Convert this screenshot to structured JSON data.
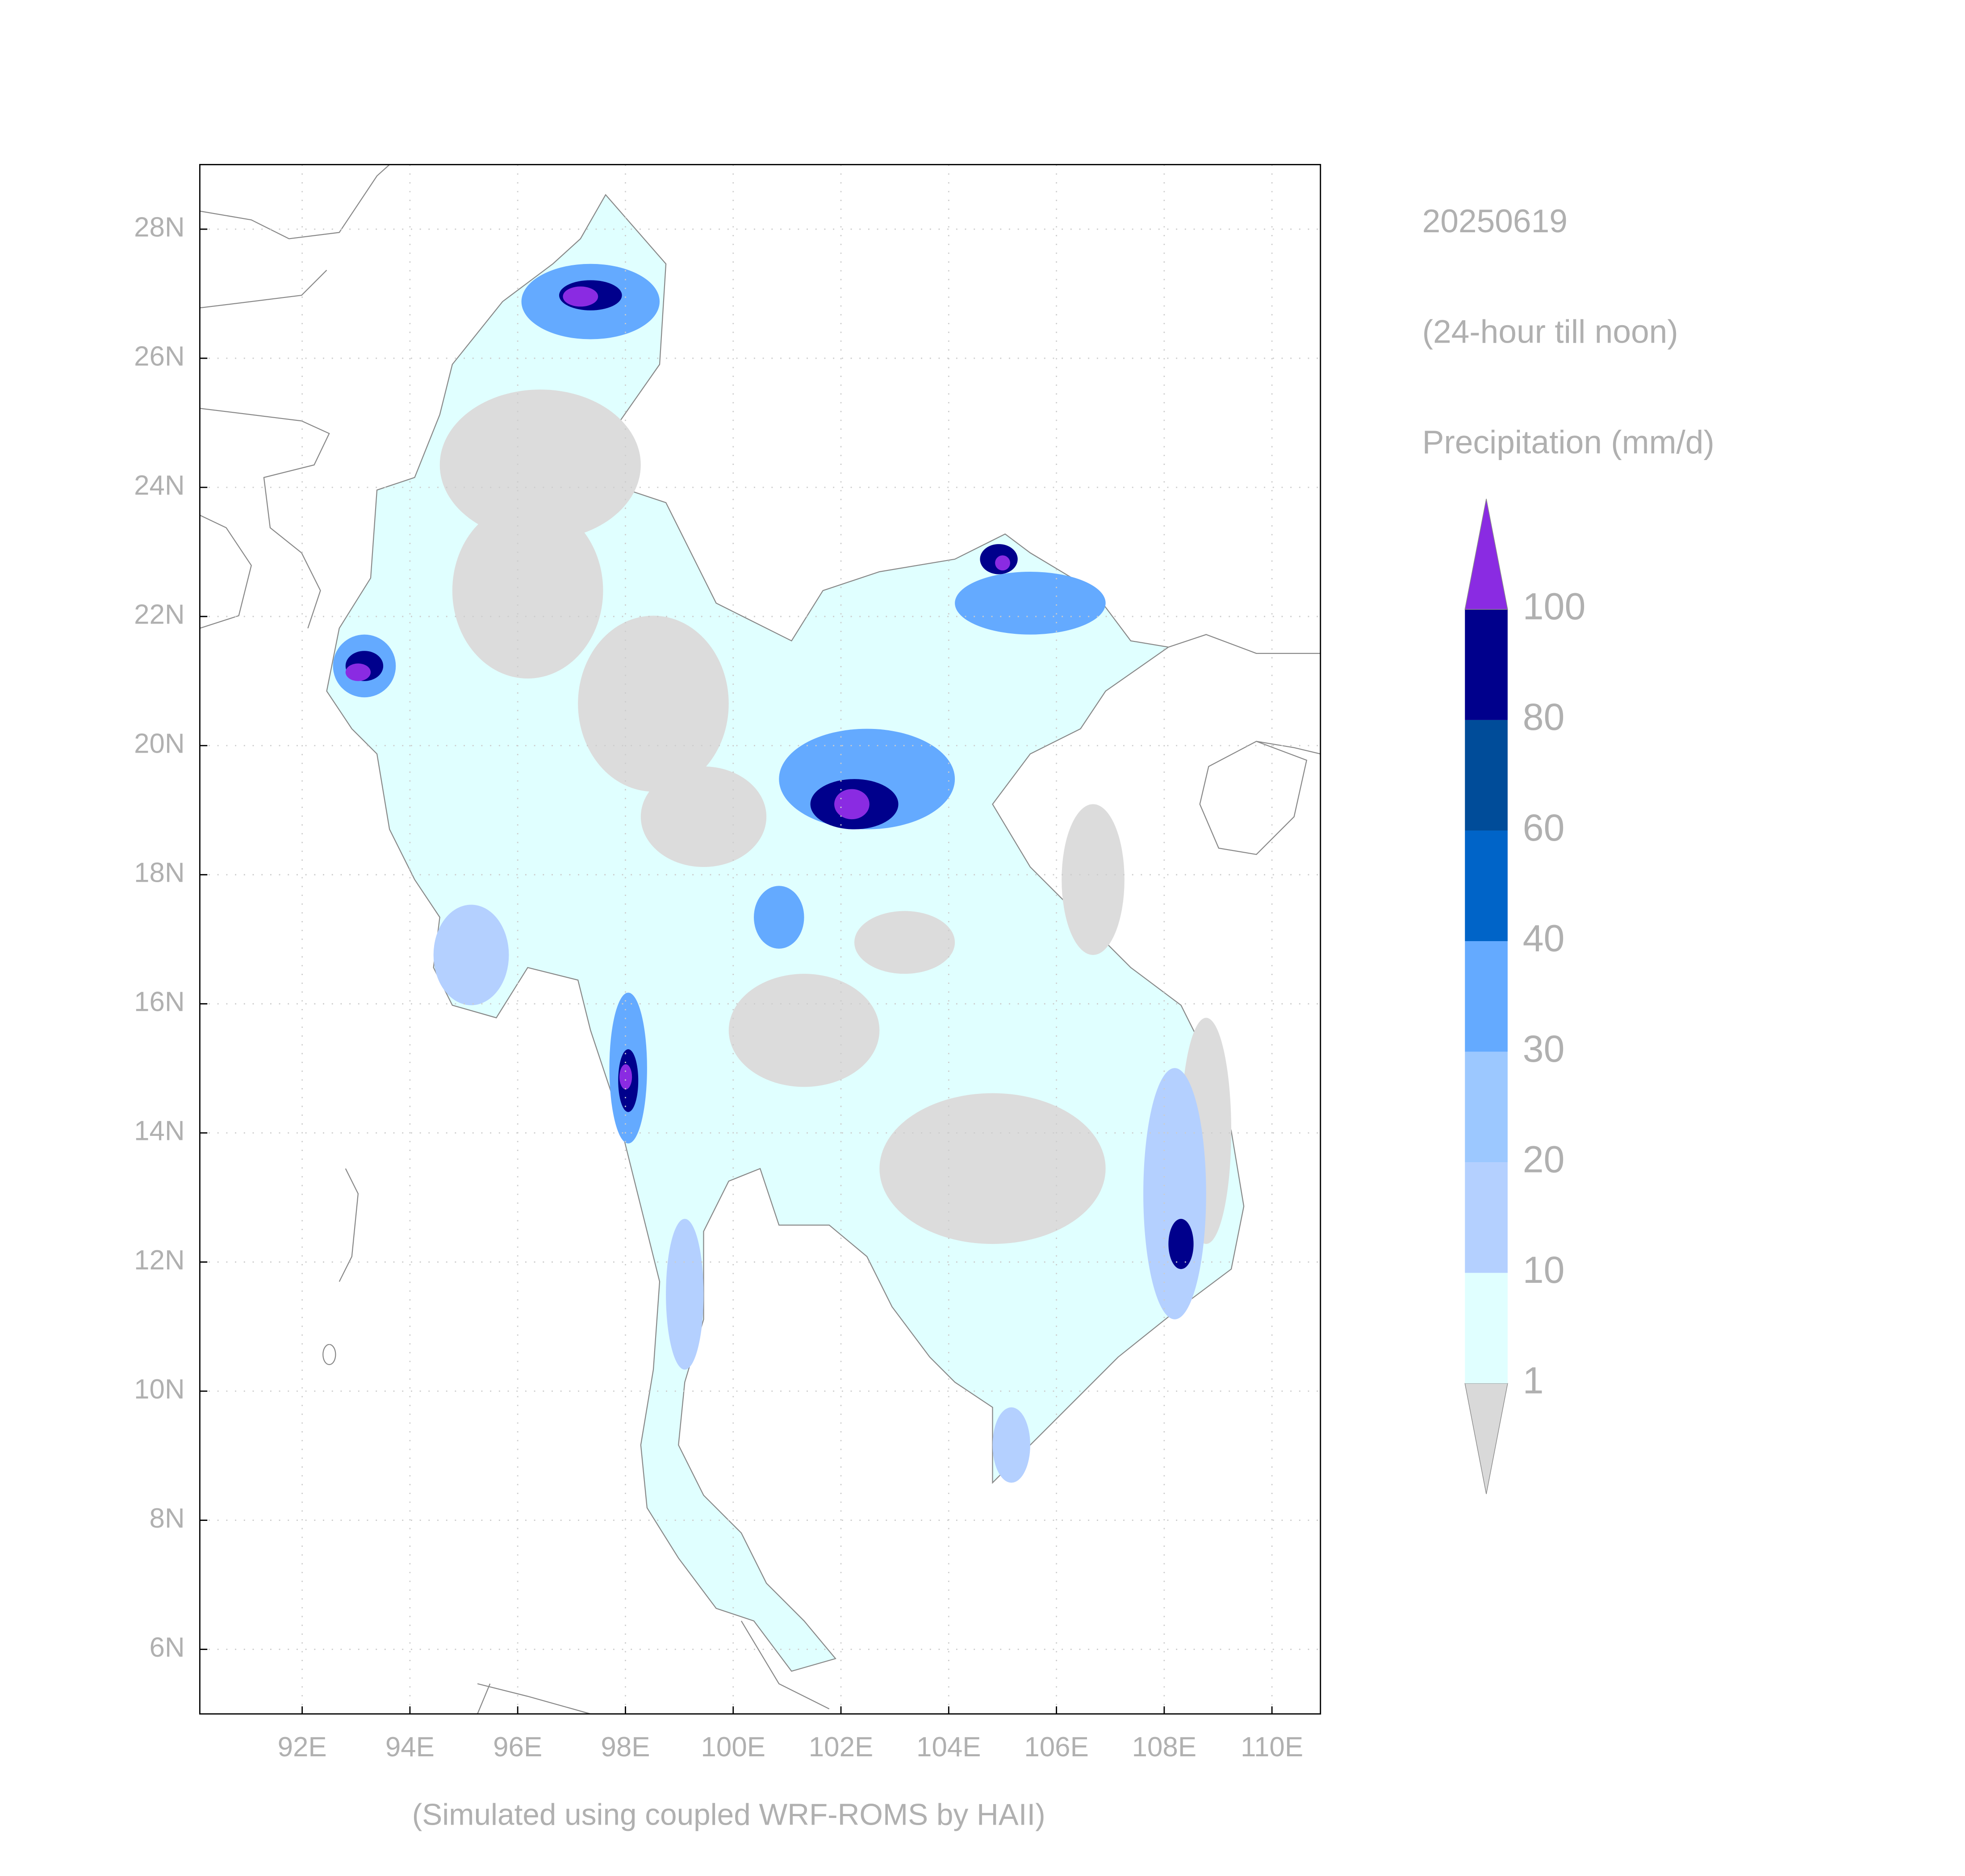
{
  "header": {
    "date": "20250619",
    "period": "(24-hour till noon)",
    "variable": "Precipitation (mm/d)"
  },
  "map": {
    "xlim": [
      90.1,
      110.9
    ],
    "ylim": [
      5,
      29
    ],
    "xticks": [
      {
        "value": 92,
        "label": "92E"
      },
      {
        "value": 94,
        "label": "94E"
      },
      {
        "value": 96,
        "label": "96E"
      },
      {
        "value": 98,
        "label": "98E"
      },
      {
        "value": 100,
        "label": "100E"
      },
      {
        "value": 102,
        "label": "102E"
      },
      {
        "value": 104,
        "label": "104E"
      },
      {
        "value": 106,
        "label": "106E"
      },
      {
        "value": 108,
        "label": "108E"
      },
      {
        "value": 110,
        "label": "110E"
      }
    ],
    "yticks": [
      {
        "value": 6,
        "label": "6N"
      },
      {
        "value": 8,
        "label": "8N"
      },
      {
        "value": 10,
        "label": "10N"
      },
      {
        "value": 12,
        "label": "12N"
      },
      {
        "value": 14,
        "label": "14N"
      },
      {
        "value": 16,
        "label": "16N"
      },
      {
        "value": 18,
        "label": "18N"
      },
      {
        "value": 20,
        "label": "20N"
      },
      {
        "value": 22,
        "label": "22N"
      },
      {
        "value": 24,
        "label": "24N"
      },
      {
        "value": 26,
        "label": "26N"
      },
      {
        "value": 28,
        "label": "28N"
      }
    ],
    "grid": true
  },
  "colorbar": {
    "levels": [
      1,
      10,
      20,
      30,
      40,
      60,
      80,
      100
    ],
    "colors": [
      "#d9d9d9",
      "#e0ffff",
      "#b4d0ff",
      "#9cc8ff",
      "#64aaff",
      "#0064c8",
      "#004c99",
      "#00008c",
      "#8a2be2"
    ]
  },
  "footer": "(Simulated using coupled WRF-ROMS by HAII)"
}
